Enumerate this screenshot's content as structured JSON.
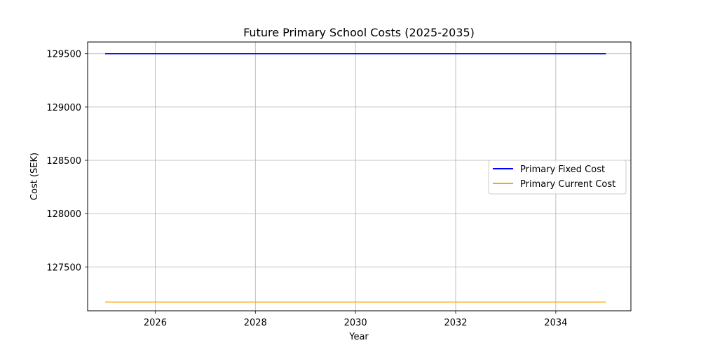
{
  "chart_data": {
    "type": "line",
    "title": "Future Primary School Costs (2025-2035)",
    "xlabel": "Year",
    "ylabel": "Cost (SEK)",
    "x": [
      2025,
      2026,
      2027,
      2028,
      2029,
      2030,
      2031,
      2032,
      2033,
      2034,
      2035
    ],
    "xlim": [
      2024.65,
      2035.5
    ],
    "ylim": [
      127088,
      129610
    ],
    "xticks": [
      2026,
      2028,
      2030,
      2032,
      2034
    ],
    "yticks": [
      127500,
      128000,
      128500,
      129000,
      129500
    ],
    "grid": true,
    "legend_position": "center-right",
    "series": [
      {
        "name": "Primary Fixed Cost",
        "color": "#0000ff",
        "values": [
          129500,
          129500,
          129500,
          129500,
          129500,
          129500,
          129500,
          129500,
          129500,
          129500,
          129500
        ]
      },
      {
        "name": "Primary Current Cost",
        "color": "#ffa500",
        "values": [
          127170,
          127170,
          127170,
          127170,
          127170,
          127170,
          127170,
          127170,
          127170,
          127170,
          127170
        ]
      }
    ]
  }
}
